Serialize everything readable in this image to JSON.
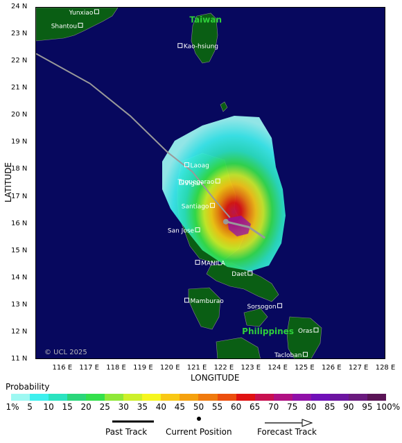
{
  "map": {
    "copyright": "© UCL 2025",
    "country_labels": [
      {
        "name": "Taiwan",
        "lon": 120.7,
        "lat": 23.45
      },
      {
        "name": "Philippines",
        "lon": 122.65,
        "lat": 11.95
      }
    ],
    "cities": [
      {
        "name": "Yunxiao",
        "lon": 117.25,
        "lat": 23.85,
        "side": "left"
      },
      {
        "name": "Shantou",
        "lon": 116.65,
        "lat": 23.35,
        "side": "left"
      },
      {
        "name": "Kao-hsiung",
        "lon": 120.35,
        "lat": 22.6,
        "side": "right"
      },
      {
        "name": "Laoag",
        "lon": 120.6,
        "lat": 18.2,
        "side": "right"
      },
      {
        "name": "Tuguegarao",
        "lon": 121.75,
        "lat": 17.6,
        "side": "left"
      },
      {
        "name": "Vigan",
        "lon": 120.4,
        "lat": 17.55,
        "side": "right"
      },
      {
        "name": "Santiago",
        "lon": 121.55,
        "lat": 16.7,
        "side": "left"
      },
      {
        "name": "San Jose",
        "lon": 121.0,
        "lat": 15.8,
        "side": "left"
      },
      {
        "name": "MANILA",
        "lon": 121.0,
        "lat": 14.6,
        "side": "right"
      },
      {
        "name": "Daet",
        "lon": 122.95,
        "lat": 14.2,
        "side": "left"
      },
      {
        "name": "Mamburao",
        "lon": 120.6,
        "lat": 13.2,
        "side": "right"
      },
      {
        "name": "Sorsogon",
        "lon": 124.05,
        "lat": 13.0,
        "side": "left"
      },
      {
        "name": "Oras",
        "lon": 125.4,
        "lat": 12.1,
        "side": "left"
      },
      {
        "name": "Tacloban",
        "lon": 125.0,
        "lat": 11.2,
        "side": "left"
      }
    ],
    "past_track": [
      [
        115.0,
        22.3
      ],
      [
        117.0,
        21.2
      ],
      [
        118.5,
        20.0
      ],
      [
        119.9,
        18.65
      ],
      [
        120.8,
        17.95
      ],
      [
        121.6,
        16.95
      ],
      [
        122.2,
        16.25
      ]
    ],
    "current_position": [
      122.05,
      16.1
    ],
    "forecast_track": [
      [
        122.05,
        16.1
      ],
      [
        122.9,
        15.9
      ],
      [
        123.5,
        15.5
      ]
    ],
    "colors": {
      "ocean": "#07085e",
      "land": "#0a5e14",
      "border": "#888888",
      "track": "#999999"
    }
  },
  "axes": {
    "x_title": "LONGITUDE",
    "y_title": "LATITUDE",
    "x_ticks": [
      "116 E",
      "117 E",
      "118 E",
      "119 E",
      "120 E",
      "121 E",
      "122 E",
      "123 E",
      "124 E",
      "125 E",
      "126 E",
      "127 E",
      "128 E"
    ],
    "y_ticks": [
      "24 N",
      "23 N",
      "22 N",
      "21 N",
      "20 N",
      "19 N",
      "18 N",
      "17 N",
      "16 N",
      "15 N",
      "14 N",
      "13 N",
      "12 N",
      "11 N"
    ]
  },
  "legend": {
    "title": "Probability",
    "labels": [
      "1%",
      "5",
      "10",
      "15",
      "20",
      "25",
      "30",
      "35",
      "40",
      "45",
      "50",
      "55",
      "60",
      "65",
      "70",
      "75",
      "80",
      "85",
      "90",
      "95",
      "100%"
    ],
    "colors": [
      "#9ef8f2",
      "#3df0ee",
      "#2be3c0",
      "#2bd67a",
      "#34e04c",
      "#8fe838",
      "#cdf02a",
      "#f6f61e",
      "#f9c814",
      "#f5a10e",
      "#f07a0e",
      "#ec4e0e",
      "#e01212",
      "#c81050",
      "#b01082",
      "#9010a8",
      "#7010b8",
      "#6c14a0",
      "#6a1a7e",
      "#5a1456"
    ],
    "past_label": "Past Track",
    "current_label": "Current Position",
    "forecast_label": "Forecast Track"
  }
}
